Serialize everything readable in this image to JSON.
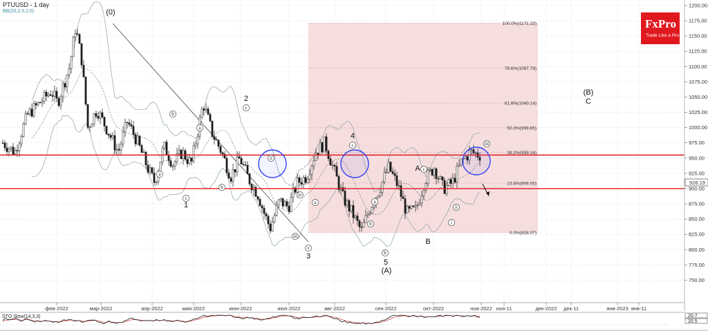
{
  "chart_title": "PTUUSD - 1 day",
  "indicator_label": "BB(20,2.0,2.0)",
  "logo": {
    "text": "FxPro",
    "tagline": "Trade Like a Pro",
    "color": "#e0191f"
  },
  "colors": {
    "up": "#1a1a1a",
    "down": "#1a1a1a",
    "bands": "#8aa0a8",
    "resistance": "#e0191f",
    "fib_zone": "#f6dede",
    "circle": "#3344ee",
    "stoch_k": "#1a1a1a",
    "stoch_d": "#cc3333"
  },
  "chart_data": {
    "type": "candlestick",
    "symbol": "PTUUSD",
    "timeframe": "1 day",
    "ylim": [
      725,
      1200
    ],
    "y_ticks": [
      "750.00",
      "775.00",
      "800.00",
      "825.00",
      "850.00",
      "875.00",
      "900.00",
      "925.00",
      "950.00",
      "975.00",
      "1000.00",
      "1025.00",
      "1050.00",
      "1075.00",
      "1100.00",
      "1125.00",
      "1150.00",
      "1175.00",
      "1200.00"
    ],
    "x_labels": [
      "фев-2022",
      "мар-2022",
      "апр-2022",
      "мая-2022",
      "июн-2022",
      "июл-2022",
      "авг-2022",
      "сен-2022",
      "окт-2022",
      "ноя-2022",
      "ноя-11",
      "дек-2022",
      "дек-11",
      "янв-2023",
      "янв-11"
    ],
    "current_price": "926.19",
    "resistance_levels": [
      955,
      900
    ],
    "fib_levels": [
      {
        "label": "100.0%(1171.22)",
        "value": 1171.22
      },
      {
        "label": "78.6%(1097.79)",
        "value": 1097.79
      },
      {
        "label": "61.8%(1040.14)",
        "value": 1040.14
      },
      {
        "label": "50.0%(999.65)",
        "value": 999.65
      },
      {
        "label": "38.2%(959.16)",
        "value": 959.16
      },
      {
        "label": "23.6%(909.05)",
        "value": 909.05
      },
      {
        "label": "0.0%(828.07)",
        "value": 828.07
      }
    ],
    "wave_labels": [
      "(0)",
      "1",
      "2",
      "3",
      "5",
      "(A)",
      "A",
      "B",
      "(B)",
      "C",
      "4"
    ],
    "circle_labels": [
      "a",
      "b",
      "c",
      "a",
      "b",
      "c",
      "ii",
      "iii",
      "iv",
      "v",
      "a",
      "b",
      "c",
      "a",
      "b",
      "c",
      "i",
      "ii",
      "iii"
    ],
    "price_path": [
      {
        "t": 0,
        "p": 975
      },
      {
        "t": 4,
        "p": 960
      },
      {
        "t": 8,
        "p": 1020
      },
      {
        "t": 12,
        "p": 1040
      },
      {
        "t": 16,
        "p": 1060
      },
      {
        "t": 18,
        "p": 1040
      },
      {
        "t": 22,
        "p": 1100
      },
      {
        "t": 24,
        "p": 1165
      },
      {
        "t": 26,
        "p": 1110
      },
      {
        "t": 28,
        "p": 1000
      },
      {
        "t": 31,
        "p": 1030
      },
      {
        "t": 35,
        "p": 990
      },
      {
        "t": 38,
        "p": 960
      },
      {
        "t": 41,
        "p": 1010
      },
      {
        "t": 44,
        "p": 980
      },
      {
        "t": 48,
        "p": 930
      },
      {
        "t": 50,
        "p": 910
      },
      {
        "t": 53,
        "p": 970
      },
      {
        "t": 56,
        "p": 940
      },
      {
        "t": 59,
        "p": 960
      },
      {
        "t": 62,
        "p": 940
      },
      {
        "t": 66,
        "p": 1040
      },
      {
        "t": 69,
        "p": 990
      },
      {
        "t": 72,
        "p": 960
      },
      {
        "t": 75,
        "p": 920
      },
      {
        "t": 78,
        "p": 950
      },
      {
        "t": 81,
        "p": 915
      },
      {
        "t": 84,
        "p": 890
      },
      {
        "t": 86,
        "p": 860
      },
      {
        "t": 88,
        "p": 835
      },
      {
        "t": 91,
        "p": 880
      },
      {
        "t": 94,
        "p": 870
      },
      {
        "t": 97,
        "p": 910
      },
      {
        "t": 100,
        "p": 920
      },
      {
        "t": 103,
        "p": 960
      },
      {
        "t": 106,
        "p": 975
      },
      {
        "t": 109,
        "p": 930
      },
      {
        "t": 112,
        "p": 885
      },
      {
        "t": 115,
        "p": 860
      },
      {
        "t": 118,
        "p": 830
      },
      {
        "t": 121,
        "p": 870
      },
      {
        "t": 124,
        "p": 900
      },
      {
        "t": 127,
        "p": 935
      },
      {
        "t": 130,
        "p": 905
      },
      {
        "t": 133,
        "p": 860
      },
      {
        "t": 136,
        "p": 865
      },
      {
        "t": 139,
        "p": 915
      },
      {
        "t": 142,
        "p": 935
      },
      {
        "t": 145,
        "p": 900
      },
      {
        "t": 148,
        "p": 910
      },
      {
        "t": 151,
        "p": 945
      },
      {
        "t": 154,
        "p": 960
      },
      {
        "t": 157,
        "p": 955
      }
    ],
    "stochastic": {
      "label": "STO Slow(14,3,3)",
      "ylim": [
        0,
        100
      ],
      "levels": [
        "20.7",
        "20.5"
      ]
    }
  }
}
